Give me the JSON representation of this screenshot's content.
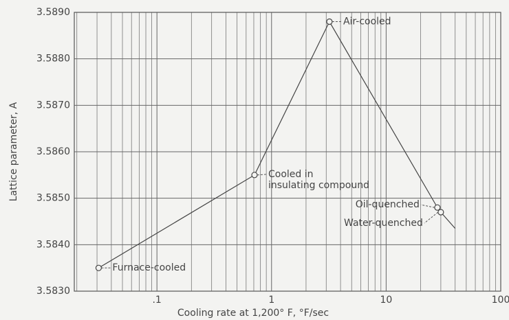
{
  "chart_data": {
    "type": "line",
    "x_label": "Cooling rate at 1,200° F, °F/sec",
    "y_label": "Lattice parameter, A",
    "log_x": true,
    "grid": true,
    "color": "#444444",
    "x": [
      0.031,
      0.71,
      3.2,
      28,
      30,
      40
    ],
    "series": [
      {
        "values": [
          3.5835,
          3.5855,
          3.5888,
          3.5848,
          3.5847,
          3.58435
        ]
      }
    ],
    "point_labels": [
      [
        "Furnace-cooled"
      ],
      [
        "Cooled in",
        "insulating compound"
      ],
      [
        "Air-cooled"
      ],
      [
        "Oil-quenched"
      ],
      [
        "Water-quenched"
      ],
      null
    ],
    "xlim": [
      0.019,
      100
    ],
    "xticks": [
      {
        "value": 0.1,
        "label": ".1"
      },
      1,
      10,
      100
    ],
    "x_minor_ticks": [
      0.02,
      0.03,
      0.04,
      0.05,
      0.06,
      0.07,
      0.08,
      0.09,
      0.2,
      0.3,
      0.4,
      0.5,
      0.6,
      0.7,
      0.8,
      0.9,
      2,
      3,
      4,
      5,
      6,
      7,
      8,
      9,
      20,
      30,
      40,
      50,
      60,
      70,
      80,
      90
    ],
    "ylim": [
      3.583,
      3.589
    ],
    "yticks": [
      {
        "value": 3.583,
        "label": "3.5830"
      },
      {
        "value": 3.584,
        "label": "3.5840"
      },
      {
        "value": 3.585,
        "label": "3.5850"
      },
      {
        "value": 3.586,
        "label": "3.5860"
      },
      {
        "value": 3.587,
        "label": "3.5870"
      },
      {
        "value": 3.588,
        "label": "3.5880"
      },
      {
        "value": 3.589,
        "label": "3.5890"
      }
    ]
  }
}
